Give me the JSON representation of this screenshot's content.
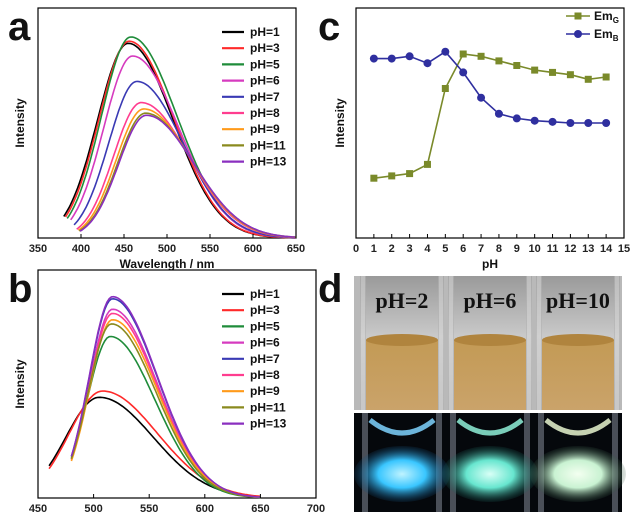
{
  "panels": {
    "a": "a",
    "b": "b",
    "c": "c",
    "d": "d"
  },
  "chart_data": [
    {
      "panel": "a",
      "type": "line",
      "xlabel": "Wavelength / nm",
      "ylabel": "Intensity",
      "xlim": [
        350,
        650
      ],
      "xticks": [
        350,
        400,
        450,
        500,
        550,
        600,
        650
      ],
      "ylim": [
        0,
        1.0
      ],
      "series": [
        {
          "name": "pH=1",
          "color": "#000000",
          "start": 380,
          "peak": 455,
          "amp": 0.92,
          "wl": 48,
          "wr": 70
        },
        {
          "name": "pH=3",
          "color": "#ff2a2a",
          "start": 382,
          "peak": 456,
          "amp": 0.93,
          "wl": 47,
          "wr": 70
        },
        {
          "name": "pH=5",
          "color": "#1f8c3a",
          "start": 384,
          "peak": 458,
          "amp": 0.95,
          "wl": 46,
          "wr": 72
        },
        {
          "name": "pH=6",
          "color": "#d63bbf",
          "start": 388,
          "peak": 460,
          "amp": 0.86,
          "wl": 45,
          "wr": 72
        },
        {
          "name": "pH=7",
          "color": "#3a3ab4",
          "start": 392,
          "peak": 465,
          "amp": 0.74,
          "wl": 44,
          "wr": 72
        },
        {
          "name": "pH=8",
          "color": "#ff3d8f",
          "start": 395,
          "peak": 470,
          "amp": 0.64,
          "wl": 43,
          "wr": 74
        },
        {
          "name": "pH=9",
          "color": "#ff9a1a",
          "start": 397,
          "peak": 473,
          "amp": 0.61,
          "wl": 43,
          "wr": 74
        },
        {
          "name": "pH=11",
          "color": "#8a8a1e",
          "start": 398,
          "peak": 475,
          "amp": 0.59,
          "wl": 43,
          "wr": 74
        },
        {
          "name": "pH=13",
          "color": "#8a2fbf",
          "start": 399,
          "peak": 476,
          "amp": 0.58,
          "wl": 43,
          "wr": 74
        }
      ]
    },
    {
      "panel": "b",
      "type": "line",
      "xlabel": "",
      "ylabel": "Intensity",
      "xlim": [
        450,
        700
      ],
      "xticks": [
        450,
        500,
        550,
        600,
        650,
        700
      ],
      "ylim": [
        0,
        1.0
      ],
      "series": [
        {
          "name": "pH=1",
          "color": "#000000",
          "start": 460,
          "peak": 505,
          "amp": 0.48,
          "wl": 40,
          "wr": 65
        },
        {
          "name": "pH=3",
          "color": "#ff2a2a",
          "start": 460,
          "peak": 508,
          "amp": 0.51,
          "wl": 40,
          "wr": 66
        },
        {
          "name": "pH=5",
          "color": "#1f8c3a",
          "start": 480,
          "peak": 515,
          "amp": 0.77,
          "wl": 28,
          "wr": 54
        },
        {
          "name": "pH=6",
          "color": "#d63bbf",
          "start": 480,
          "peak": 517,
          "amp": 0.9,
          "wl": 28,
          "wr": 54
        },
        {
          "name": "pH=7",
          "color": "#3a3ab4",
          "start": 480,
          "peak": 517,
          "amp": 0.95,
          "wl": 28,
          "wr": 54
        },
        {
          "name": "pH=8",
          "color": "#ff3d8f",
          "start": 480,
          "peak": 517,
          "amp": 0.88,
          "wl": 28,
          "wr": 54
        },
        {
          "name": "pH=9",
          "color": "#ff9a1a",
          "start": 480,
          "peak": 517,
          "amp": 0.85,
          "wl": 28,
          "wr": 54
        },
        {
          "name": "pH=11",
          "color": "#8a8a1e",
          "start": 480,
          "peak": 516,
          "amp": 0.83,
          "wl": 28,
          "wr": 54
        },
        {
          "name": "pH=13",
          "color": "#8a2fbf",
          "start": 480,
          "peak": 517,
          "amp": 0.96,
          "wl": 28,
          "wr": 54
        }
      ]
    },
    {
      "panel": "c",
      "type": "line",
      "xlabel": "pH",
      "ylabel": "Intensity",
      "xlim": [
        0,
        15
      ],
      "xticks": [
        0,
        1,
        2,
        3,
        4,
        5,
        6,
        7,
        8,
        9,
        10,
        11,
        12,
        13,
        14,
        15
      ],
      "ylim": [
        0,
        1.0
      ],
      "x": [
        1,
        2,
        3,
        4,
        5,
        6,
        7,
        8,
        9,
        10,
        11,
        12,
        13,
        14
      ],
      "series": [
        {
          "name": "Em",
          "sub": "G",
          "color": "#7a8a2a",
          "marker": "square",
          "values": [
            0.26,
            0.27,
            0.28,
            0.32,
            0.65,
            0.8,
            0.79,
            0.77,
            0.75,
            0.73,
            0.72,
            0.71,
            0.69,
            0.7
          ]
        },
        {
          "name": "Em",
          "sub": "B",
          "color": "#2f2f9f",
          "marker": "circle",
          "values": [
            0.78,
            0.78,
            0.79,
            0.76,
            0.81,
            0.72,
            0.61,
            0.54,
            0.52,
            0.51,
            0.505,
            0.5,
            0.5,
            0.5
          ]
        }
      ]
    }
  ],
  "photos": {
    "labels": [
      "pH=2",
      "pH=6",
      "pH=10"
    ]
  }
}
